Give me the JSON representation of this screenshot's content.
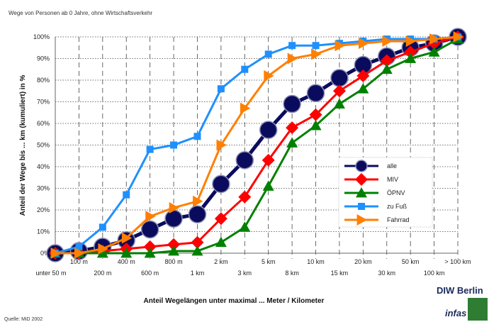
{
  "chart_data": {
    "type": "line",
    "title": "Wege von Personen ab 0 Jahre, ohne Wirtschaftsverkehr",
    "xlabel": "Anteil Wegelängen unter maximal ... Meter / Kilometer",
    "ylabel": "Anteil der Wege bis ... km (kumuliert) in %",
    "categories": [
      "unter 50 m",
      "100 m",
      "200 m",
      "400 m",
      "600 m",
      "800 m",
      "1 km",
      "2 km",
      "3 km",
      "5 km",
      "8 km",
      "10 km",
      "15 km",
      "20 km",
      "30 km",
      "50 km",
      "100 km",
      "> 100 km"
    ],
    "y_ticks": [
      "0%",
      "10%",
      "20%",
      "30%",
      "40%",
      "50%",
      "60%",
      "70%",
      "80%",
      "90%",
      "100%"
    ],
    "ylim": [
      0,
      100
    ],
    "grid": "dashed vertical lines, dotted horizontal lines",
    "legend_position": "right-center",
    "series": [
      {
        "name": "alle",
        "color": "#0b0b5e",
        "marker": "circle",
        "values": [
          0,
          1,
          3,
          6,
          11,
          16,
          18,
          32,
          43,
          57,
          69,
          74,
          81,
          87,
          91,
          95,
          97,
          100
        ]
      },
      {
        "name": "MIV",
        "color": "#ff0000",
        "marker": "diamond",
        "values": [
          0,
          0,
          1,
          2,
          3,
          4,
          5,
          16,
          26,
          43,
          58,
          64,
          75,
          82,
          89,
          93,
          97,
          100
        ]
      },
      {
        "name": "ÖPNV",
        "color": "#008000",
        "marker": "triangle",
        "values": [
          0,
          0,
          0,
          0,
          0,
          1,
          1,
          5,
          12,
          31,
          51,
          59,
          69,
          76,
          85,
          90,
          93,
          99
        ]
      },
      {
        "name": "zu Fuß",
        "color": "#1e90ff",
        "marker": "square",
        "values": [
          0,
          3,
          12,
          27,
          48,
          50,
          54,
          76,
          85,
          92,
          96,
          96,
          97,
          98,
          99,
          99,
          99,
          100
        ]
      },
      {
        "name": "Fahrrad",
        "color": "#ff7f00",
        "marker": "triangle-right",
        "values": [
          0,
          0,
          2,
          7,
          17,
          21,
          24,
          50,
          67,
          82,
          90,
          92,
          96,
          97,
          98,
          98,
          99,
          100
        ]
      }
    ]
  },
  "source": "Quelle: MiD 2002",
  "logos": {
    "diw": "DIW Berlin",
    "infas": "infas"
  }
}
